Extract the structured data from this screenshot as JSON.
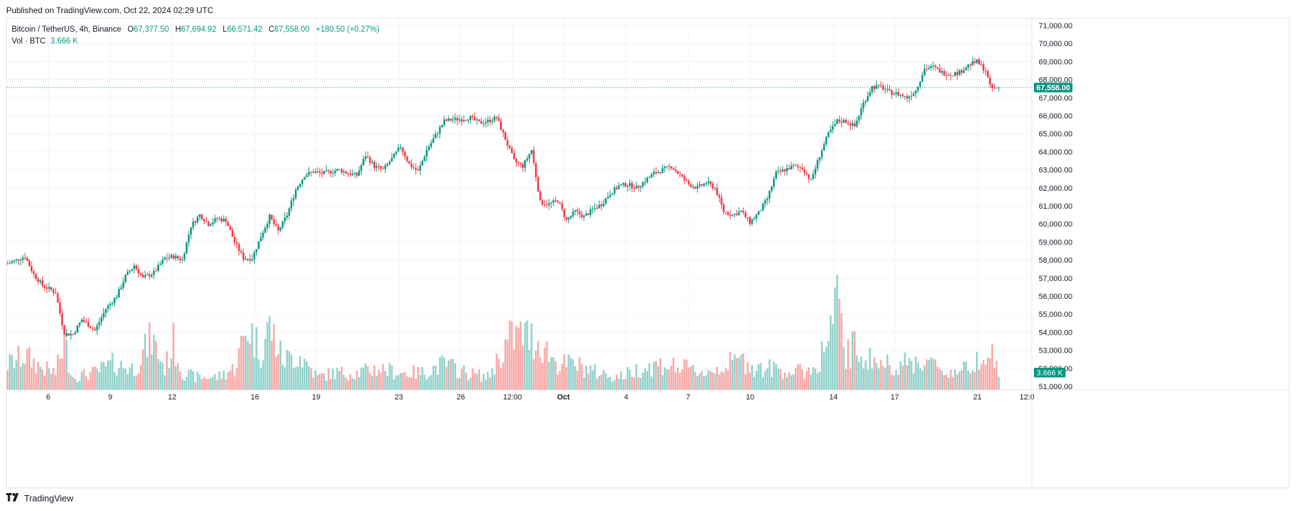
{
  "header": {
    "published": "Published on TradingView.com, Oct 22, 2024 02:29 UTC"
  },
  "legend": {
    "symbol": "Bitcoin / TetherUS, 4h, Binance",
    "o_label": "O",
    "o": "67,377.50",
    "h_label": "H",
    "h": "67,694.92",
    "l_label": "L",
    "l": "66,571.42",
    "c_label": "C",
    "c": "67,558.00",
    "change": "+180.50 (+0.27%)",
    "vol_label": "Vol · BTC",
    "vol_value": "3.666 K"
  },
  "footer": {
    "brand": "TradingView"
  },
  "colors": {
    "up": "#089981",
    "down": "#f23645",
    "vol_up": "#92d2cc",
    "vol_down": "#f7a9a7",
    "grid": "#f0f3fa"
  },
  "chart_data": {
    "type": "candlestick",
    "interval": "4h",
    "y_axis": {
      "ticks": [
        "71,000.00",
        "70,000.00",
        "69,000.00",
        "68,000.00",
        "67,000.00",
        "66,000.00",
        "65,000.00",
        "64,000.00",
        "63,000.00",
        "62,000.00",
        "61,000.00",
        "60,000.00",
        "59,000.00",
        "58,000.00",
        "57,000.00",
        "56,000.00",
        "55,000.00",
        "54,000.00",
        "53,000.00",
        "52,000.00",
        "51,000.00"
      ],
      "range": [
        51000,
        71000
      ],
      "last_price_label": "67,558.00",
      "last_price": 67558,
      "volume_label": "3.666 K"
    },
    "x_axis": {
      "ticks": [
        "6",
        "9",
        "12",
        "16",
        "19",
        "23",
        "26",
        "12:00",
        "Oct",
        "4",
        "7",
        "10",
        "14",
        "17",
        "21",
        "12:0"
      ]
    },
    "price_anchors": [
      [
        0,
        57800
      ],
      [
        8,
        58200
      ],
      [
        12,
        57200
      ],
      [
        16,
        56600
      ],
      [
        22,
        56200
      ],
      [
        26,
        53900
      ],
      [
        30,
        53900
      ],
      [
        34,
        54700
      ],
      [
        40,
        54100
      ],
      [
        45,
        55300
      ],
      [
        50,
        56000
      ],
      [
        54,
        57100
      ],
      [
        58,
        57700
      ],
      [
        62,
        57000
      ],
      [
        67,
        57300
      ],
      [
        72,
        58100
      ],
      [
        76,
        58200
      ],
      [
        80,
        58000
      ],
      [
        84,
        59900
      ],
      [
        88,
        60500
      ],
      [
        92,
        60000
      ],
      [
        96,
        60300
      ],
      [
        100,
        60200
      ],
      [
        104,
        59000
      ],
      [
        108,
        58100
      ],
      [
        112,
        58100
      ],
      [
        116,
        59300
      ],
      [
        120,
        60400
      ],
      [
        124,
        59600
      ],
      [
        128,
        60500
      ],
      [
        132,
        61900
      ],
      [
        136,
        62700
      ],
      [
        140,
        62900
      ],
      [
        144,
        62800
      ],
      [
        148,
        62900
      ],
      [
        152,
        63000
      ],
      [
        156,
        62800
      ],
      [
        160,
        62700
      ],
      [
        164,
        63800
      ],
      [
        168,
        63200
      ],
      [
        172,
        63000
      ],
      [
        176,
        63600
      ],
      [
        180,
        64300
      ],
      [
        184,
        63300
      ],
      [
        188,
        62900
      ],
      [
        192,
        64100
      ],
      [
        196,
        64900
      ],
      [
        200,
        65700
      ],
      [
        204,
        65800
      ],
      [
        208,
        65800
      ],
      [
        212,
        65900
      ],
      [
        216,
        65600
      ],
      [
        220,
        65700
      ],
      [
        224,
        65900
      ],
      [
        228,
        64700
      ],
      [
        232,
        63500
      ],
      [
        236,
        63200
      ],
      [
        240,
        64100
      ],
      [
        244,
        61200
      ],
      [
        248,
        61100
      ],
      [
        252,
        61300
      ],
      [
        256,
        60200
      ],
      [
        260,
        60700
      ],
      [
        264,
        60400
      ],
      [
        268,
        60800
      ],
      [
        272,
        61100
      ],
      [
        276,
        61700
      ],
      [
        280,
        62100
      ],
      [
        284,
        62200
      ],
      [
        288,
        62000
      ],
      [
        292,
        62400
      ],
      [
        296,
        62800
      ],
      [
        300,
        63000
      ],
      [
        304,
        63200
      ],
      [
        308,
        62700
      ],
      [
        312,
        62200
      ],
      [
        316,
        62000
      ],
      [
        320,
        62300
      ],
      [
        324,
        62000
      ],
      [
        328,
        60700
      ],
      [
        332,
        60500
      ],
      [
        336,
        60700
      ],
      [
        340,
        60100
      ],
      [
        344,
        60600
      ],
      [
        348,
        61400
      ],
      [
        352,
        62800
      ],
      [
        356,
        63000
      ],
      [
        360,
        63200
      ],
      [
        364,
        63100
      ],
      [
        368,
        62400
      ],
      [
        372,
        63800
      ],
      [
        376,
        65000
      ],
      [
        380,
        65700
      ],
      [
        384,
        65700
      ],
      [
        388,
        65400
      ],
      [
        392,
        66700
      ],
      [
        396,
        67600
      ],
      [
        400,
        67600
      ],
      [
        404,
        67300
      ],
      [
        408,
        67200
      ],
      [
        412,
        67000
      ],
      [
        416,
        67400
      ],
      [
        420,
        68600
      ],
      [
        424,
        68700
      ],
      [
        428,
        68400
      ],
      [
        432,
        68300
      ],
      [
        436,
        68400
      ],
      [
        440,
        68800
      ],
      [
        444,
        69000
      ],
      [
        448,
        68500
      ],
      [
        450,
        67600
      ],
      [
        452,
        67500
      ],
      [
        454,
        67558
      ]
    ],
    "volume_anchors": [
      [
        0,
        6
      ],
      [
        8,
        8
      ],
      [
        16,
        5
      ],
      [
        22,
        4
      ],
      [
        26,
        11
      ],
      [
        30,
        3
      ],
      [
        40,
        4
      ],
      [
        48,
        6
      ],
      [
        58,
        5
      ],
      [
        66,
        12
      ],
      [
        72,
        5
      ],
      [
        76,
        11
      ],
      [
        80,
        4
      ],
      [
        86,
        3
      ],
      [
        96,
        3
      ],
      [
        104,
        5
      ],
      [
        110,
        15
      ],
      [
        116,
        9
      ],
      [
        120,
        15
      ],
      [
        126,
        7
      ],
      [
        134,
        8
      ],
      [
        142,
        3
      ],
      [
        150,
        4
      ],
      [
        160,
        4
      ],
      [
        170,
        5
      ],
      [
        180,
        4
      ],
      [
        190,
        4
      ],
      [
        200,
        6
      ],
      [
        210,
        4
      ],
      [
        220,
        3
      ],
      [
        230,
        12
      ],
      [
        236,
        13
      ],
      [
        244,
        11
      ],
      [
        252,
        6
      ],
      [
        260,
        6
      ],
      [
        270,
        4
      ],
      [
        280,
        3
      ],
      [
        290,
        5
      ],
      [
        300,
        6
      ],
      [
        310,
        5
      ],
      [
        320,
        4
      ],
      [
        330,
        6
      ],
      [
        336,
        7
      ],
      [
        344,
        5
      ],
      [
        352,
        5
      ],
      [
        360,
        4
      ],
      [
        370,
        5
      ],
      [
        376,
        12
      ],
      [
        380,
        20
      ],
      [
        384,
        8
      ],
      [
        388,
        10
      ],
      [
        392,
        8
      ],
      [
        400,
        6
      ],
      [
        410,
        6
      ],
      [
        420,
        7
      ],
      [
        430,
        4
      ],
      [
        440,
        5
      ],
      [
        448,
        10
      ],
      [
        452,
        7
      ],
      [
        454,
        3.7
      ]
    ]
  }
}
